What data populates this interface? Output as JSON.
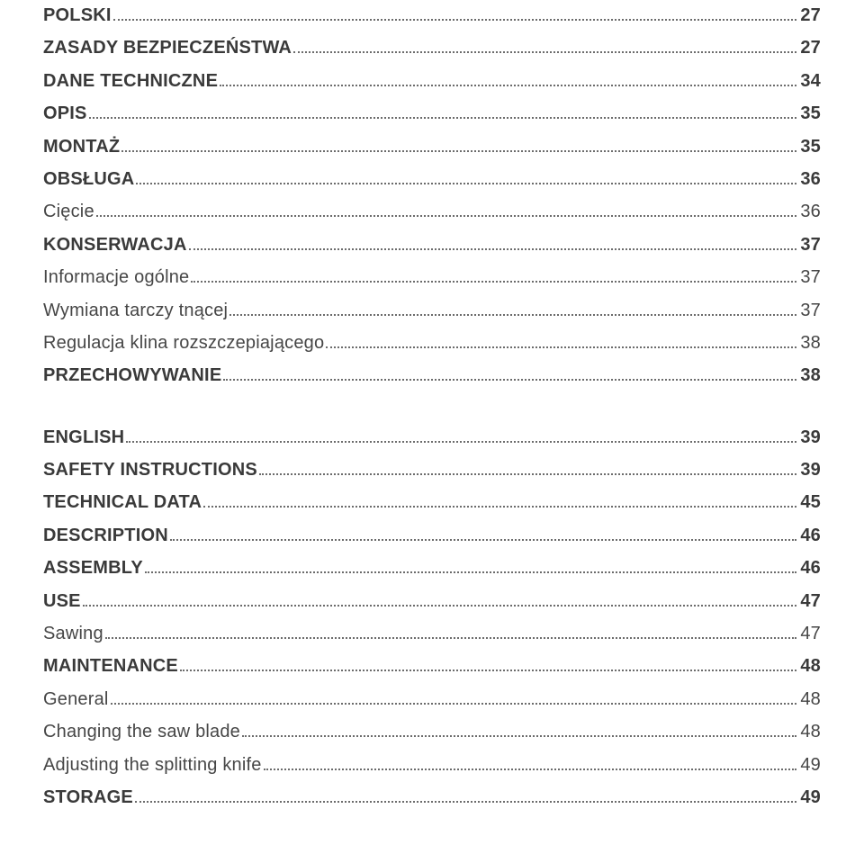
{
  "colors": {
    "text_section": "#3a3a3a",
    "text_subsection": "#464646",
    "leader": "#6b6b6b",
    "background": "#ffffff"
  },
  "typography": {
    "base_font_size_pt": 15,
    "section_weight": 600,
    "subsection_weight": 300,
    "line_height": 1.35
  },
  "toc": [
    {
      "type": "section",
      "label": "POLSKI",
      "page": "27"
    },
    {
      "type": "section",
      "label": "ZASADY BEZPIECZEŃSTWA",
      "page": "27"
    },
    {
      "type": "section",
      "label": "DANE TECHNICZNE",
      "page": "34"
    },
    {
      "type": "section",
      "label": "OPIS",
      "page": "35"
    },
    {
      "type": "section",
      "label": "MONTAŻ",
      "page": "35"
    },
    {
      "type": "section",
      "label": "OBSŁUGA",
      "page": "36"
    },
    {
      "type": "subsection",
      "label": "Cięcie",
      "page": "36"
    },
    {
      "type": "section",
      "label": "KONSERWACJA",
      "page": "37"
    },
    {
      "type": "subsection",
      "label": "Informacje ogólne",
      "page": "37"
    },
    {
      "type": "subsection",
      "label": "Wymiana tarczy tnącej",
      "page": "37"
    },
    {
      "type": "subsection",
      "label": "Regulacja klina rozszczepiającego",
      "page": "38"
    },
    {
      "type": "section",
      "label": "PRZECHOWYWANIE",
      "page": "38"
    },
    {
      "type": "gap"
    },
    {
      "type": "section",
      "label": "ENGLISH",
      "page": "39"
    },
    {
      "type": "section",
      "label": "SAFETY INSTRUCTIONS",
      "page": "39"
    },
    {
      "type": "section",
      "label": "TECHNICAL DATA",
      "page": "45"
    },
    {
      "type": "section",
      "label": "DESCRIPTION",
      "page": "46"
    },
    {
      "type": "section",
      "label": "ASSEMBLY",
      "page": "46"
    },
    {
      "type": "section",
      "label": "USE",
      "page": "47"
    },
    {
      "type": "subsection",
      "label": "Sawing",
      "page": "47"
    },
    {
      "type": "section",
      "label": "MAINTENANCE",
      "page": "48"
    },
    {
      "type": "subsection",
      "label": "General",
      "page": "48"
    },
    {
      "type": "subsection",
      "label": "Changing the saw blade",
      "page": "48"
    },
    {
      "type": "subsection",
      "label": "Adjusting the splitting knife",
      "page": "49"
    },
    {
      "type": "section",
      "label": "STORAGE",
      "page": "49"
    }
  ]
}
